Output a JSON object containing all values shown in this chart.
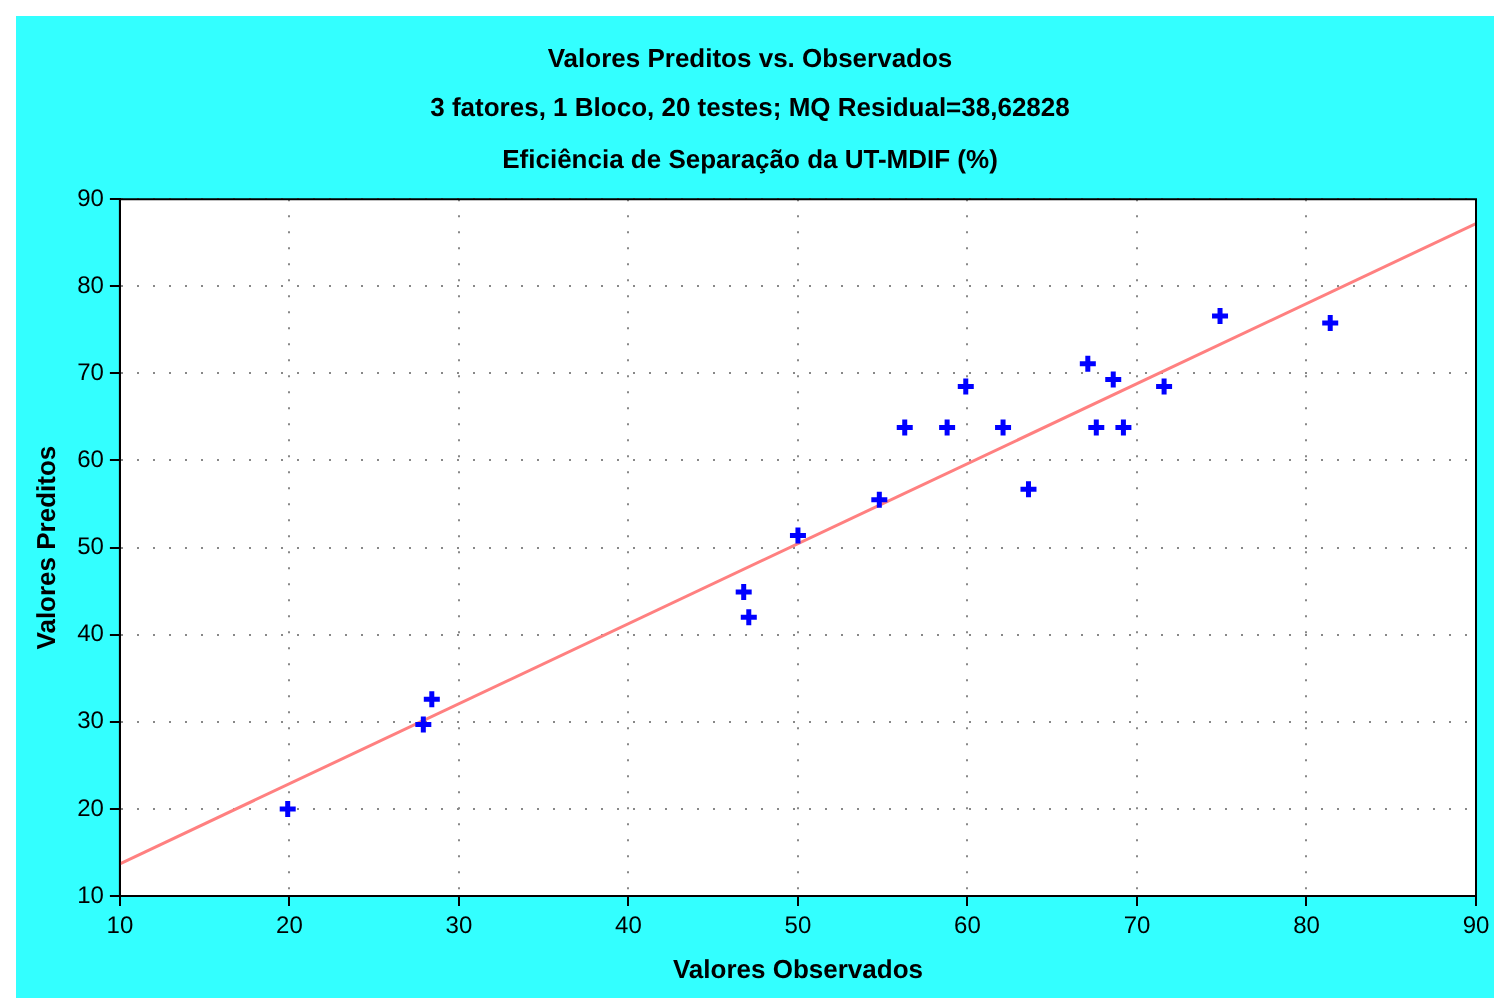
{
  "chart_data": {
    "type": "scatter",
    "title": "Valores Preditos vs. Observados",
    "subtitle": "3 fatores, 1 Bloco, 20 testes; MQ Residual=38,62828\nEficiência de Separação da UT-MDIF (%)",
    "xlabel": "Valores Observados",
    "ylabel": "Valores Preditos",
    "xlim": [
      10,
      90
    ],
    "ylim": [
      10,
      90
    ],
    "xticks": [
      10,
      20,
      30,
      40,
      50,
      60,
      70,
      80,
      90
    ],
    "yticks": [
      10,
      20,
      30,
      40,
      50,
      60,
      70,
      80,
      90
    ],
    "grid": true,
    "legend": false,
    "marker": "cross",
    "series": [
      {
        "color": "#0000ff",
        "x": [
          19.9,
          27.9,
          28.4,
          46.8,
          47.1,
          50.0,
          54.8,
          56.3,
          58.8,
          59.9,
          62.1,
          63.6,
          67.1,
          67.6,
          68.6,
          69.2,
          71.6,
          74.9,
          81.4
        ],
        "values": [
          20.0,
          29.7,
          32.6,
          44.9,
          42.0,
          51.4,
          55.5,
          63.8,
          63.8,
          68.5,
          63.8,
          56.7,
          71.1,
          63.8,
          69.3,
          63.8,
          68.5,
          76.6,
          75.8
        ]
      },
      {
        "type": "line",
        "color": "#ff8080",
        "marker": "none",
        "x": [
          10,
          90
        ],
        "values": [
          13.7,
          87.2
        ]
      }
    ]
  }
}
